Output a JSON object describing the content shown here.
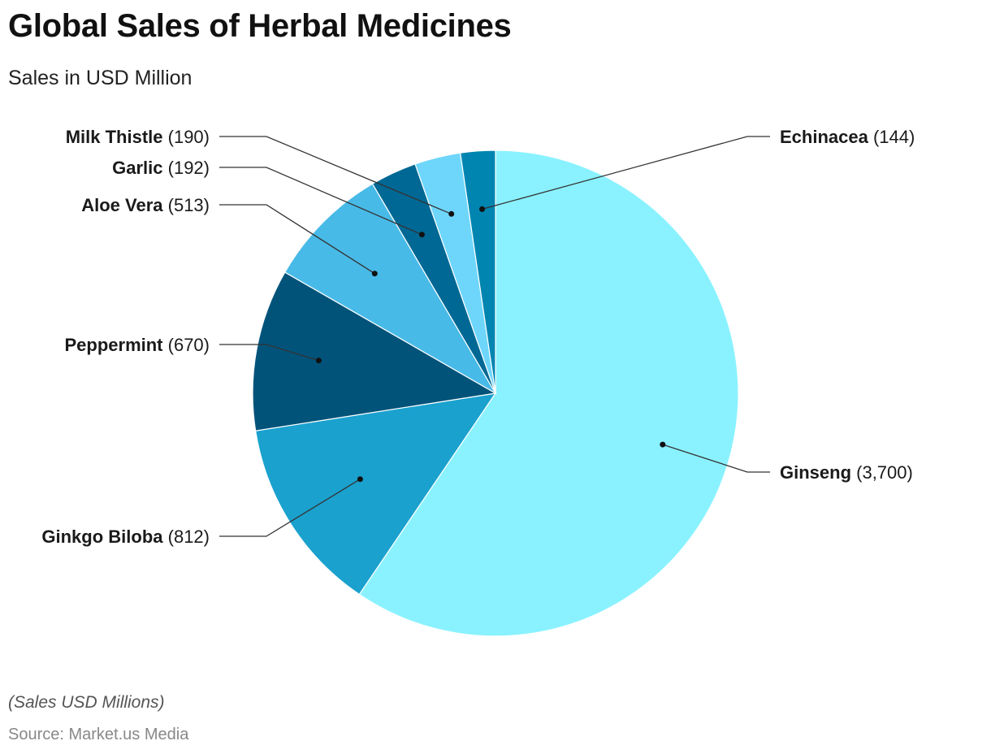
{
  "title": "Global Sales of Herbal Medicines",
  "subtitle": "Sales in USD Million",
  "footnote": "(Sales USD Millions)",
  "source": "Source: Market.us Media",
  "chart_data": {
    "type": "pie",
    "start": "12 o'clock",
    "direction": "clockwise",
    "legend": "none",
    "slices": [
      {
        "label": "Ginseng",
        "value": 3700,
        "value_text": "(3,700)",
        "color": "#8AF2FF"
      },
      {
        "label": "Ginkgo Biloba",
        "value": 812,
        "value_text": "(812)",
        "color": "#1AA1CE"
      },
      {
        "label": "Peppermint",
        "value": 670,
        "value_text": "(670)",
        "color": "#02537A"
      },
      {
        "label": "Aloe Vera",
        "value": 513,
        "value_text": "(513)",
        "color": "#48BAE7"
      },
      {
        "label": "Garlic",
        "value": 192,
        "value_text": "(192)",
        "color": "#006894"
      },
      {
        "label": "Milk Thistle",
        "value": 190,
        "value_text": "(190)",
        "color": "#6ED6FB"
      },
      {
        "label": "Echinacea",
        "value": 144,
        "value_text": "(144)",
        "color": "#0085B0"
      }
    ]
  }
}
